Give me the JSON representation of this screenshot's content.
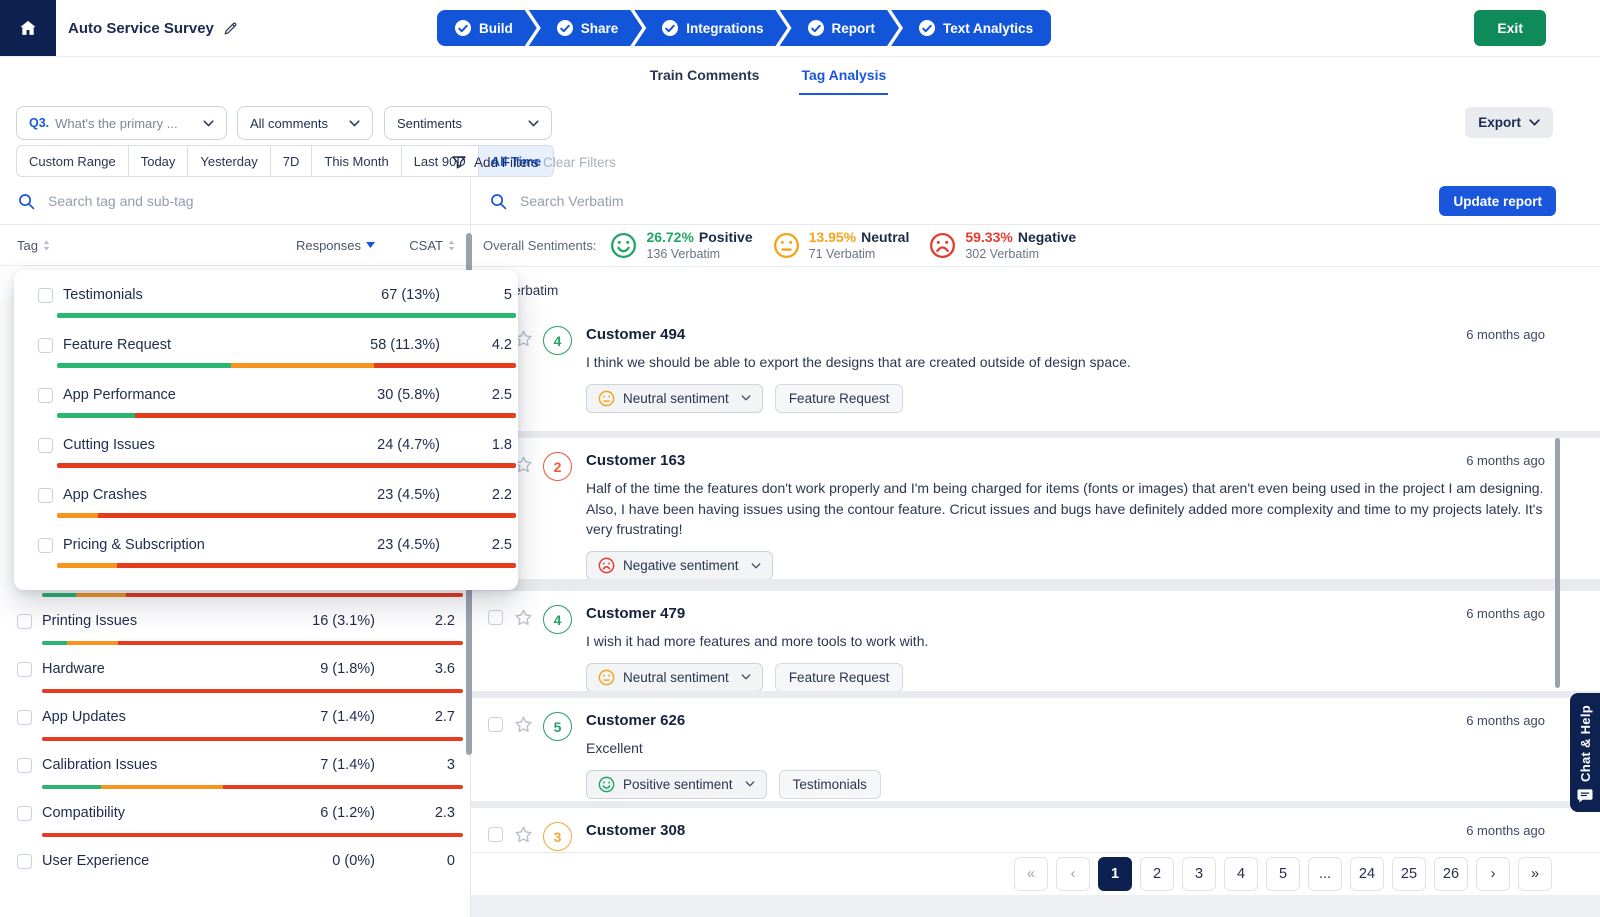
{
  "colors": {
    "accent_blue": "#1a56db",
    "step_blue": "#1355d8",
    "navy": "#0d2150",
    "exit_green": "#0f8a5b",
    "positive": "#22a565",
    "neutral": "#f5a31a",
    "negative": "#e63a2e",
    "bar_green": "#2bb673",
    "bar_orange": "#f7941e",
    "bar_red": "#e53c1d",
    "rating_green": "#27a163",
    "rating_red": "#f4573a",
    "rating_amber": "#f3a93c"
  },
  "header": {
    "title": "Auto Service Survey",
    "steps": [
      "Build",
      "Share",
      "Integrations",
      "Report",
      "Text Analytics"
    ],
    "exit_label": "Exit"
  },
  "tabs": [
    {
      "label": "Train Comments",
      "active": false
    },
    {
      "label": "Tag Analysis",
      "active": true
    }
  ],
  "filters": {
    "question_prefix": "Q3.",
    "question_label": "What's the primary ...",
    "comments_label": "All comments",
    "sentiments_label": "Sentiments",
    "export_label": "Export",
    "date_ranges": [
      "Custom Range",
      "Today",
      "Yesterday",
      "7D",
      "This Month",
      "Last 90D",
      "All Time"
    ],
    "active_range": "All Time",
    "add_filters_label": "Add Filters",
    "clear_filters_label": "Clear Filters"
  },
  "tag_panel": {
    "search_placeholder": "Search tag and sub-tag",
    "columns": {
      "tag": "Tag",
      "responses": "Responses",
      "csat": "CSAT"
    },
    "card_rows": [
      {
        "name": "Testimonials",
        "responses": "67 (13%)",
        "csat": "5",
        "bar": [
          {
            "color": "green",
            "pct": 100
          }
        ]
      },
      {
        "name": "Feature Request",
        "responses": "58 (11.3%)",
        "csat": "4.2",
        "bar": [
          {
            "color": "green",
            "pct": 38
          },
          {
            "color": "orange",
            "pct": 31
          },
          {
            "color": "red",
            "pct": 31
          }
        ]
      },
      {
        "name": "App Performance",
        "responses": "30 (5.8%)",
        "csat": "2.5",
        "bar": [
          {
            "color": "green",
            "pct": 17
          },
          {
            "color": "red",
            "pct": 83
          }
        ]
      },
      {
        "name": "Cutting Issues",
        "responses": "24 (4.7%)",
        "csat": "1.8",
        "bar": [
          {
            "color": "red",
            "pct": 100
          }
        ]
      },
      {
        "name": "App Crashes",
        "responses": "23 (4.5%)",
        "csat": "2.2",
        "bar": [
          {
            "color": "orange",
            "pct": 9
          },
          {
            "color": "red",
            "pct": 91
          }
        ]
      },
      {
        "name": "Pricing & Subscription",
        "responses": "23 (4.5%)",
        "csat": "2.5",
        "bar": [
          {
            "color": "orange",
            "pct": 13
          },
          {
            "color": "red",
            "pct": 87
          }
        ]
      }
    ],
    "list_rows": [
      {
        "name": "",
        "responses": "",
        "csat": "",
        "hidden": true,
        "bar": [
          {
            "color": "green",
            "pct": 8
          },
          {
            "color": "orange",
            "pct": 12
          },
          {
            "color": "red",
            "pct": 80
          }
        ]
      },
      {
        "name": "Printing Issues",
        "responses": "16 (3.1%)",
        "csat": "2.2",
        "bar": [
          {
            "color": "green",
            "pct": 6
          },
          {
            "color": "orange",
            "pct": 12
          },
          {
            "color": "red",
            "pct": 82
          }
        ]
      },
      {
        "name": "Hardware",
        "responses": "9 (1.8%)",
        "csat": "3.6",
        "bar": [
          {
            "color": "red",
            "pct": 100
          }
        ]
      },
      {
        "name": "App Updates",
        "responses": "7 (1.4%)",
        "csat": "2.7",
        "bar": [
          {
            "color": "red",
            "pct": 100
          }
        ]
      },
      {
        "name": "Calibration Issues",
        "responses": "7 (1.4%)",
        "csat": "3",
        "bar": [
          {
            "color": "green",
            "pct": 14
          },
          {
            "color": "orange",
            "pct": 29
          },
          {
            "color": "red",
            "pct": 57
          }
        ]
      },
      {
        "name": "Compatibility",
        "responses": "6 (1.2%)",
        "csat": "2.3",
        "bar": [
          {
            "color": "red",
            "pct": 100
          }
        ]
      },
      {
        "name": "User Experience",
        "responses": "0 (0%)",
        "csat": "0",
        "bar": []
      }
    ]
  },
  "verbatim_panel": {
    "search_placeholder": "Search Verbatim",
    "update_label": "Update report",
    "overall_label": "Overall Sentiments:",
    "overall": [
      {
        "pct": "26.72%",
        "label": "Positive",
        "count": "136 Verbatim",
        "type": "positive"
      },
      {
        "pct": "13.95%",
        "label": "Neutral",
        "count": "71 Verbatim",
        "type": "neutral"
      },
      {
        "pct": "59.33%",
        "label": "Negative",
        "count": "302 Verbatim",
        "type": "negative"
      }
    ],
    "section_title": "Verbatim",
    "entries": [
      {
        "name": "Customer 494",
        "rating": "4",
        "rating_color": "rating_green",
        "time": "6 months ago",
        "text": "I think we should be able to export the designs that are created outside of design space.",
        "sentiment": {
          "label": "Neutral sentiment",
          "type": "neutral"
        },
        "tags": [
          "Feature Request"
        ]
      },
      {
        "name": "Customer 163",
        "rating": "2",
        "rating_color": "rating_red",
        "time": "6 months ago",
        "text": "Half of the time the features don't work properly and I'm being charged for items (fonts or images) that aren't even being used in the project I am designing. Also, I have been having issues using the contour feature. Cricut issues and bugs have definitely added more complexity and time to my projects lately. It's very frustrating!",
        "sentiment": {
          "label": "Negative sentiment",
          "type": "negative"
        },
        "tags": []
      },
      {
        "name": "Customer 479",
        "rating": "4",
        "rating_color": "rating_green",
        "time": "6 months ago",
        "text": "I wish it had more features and more tools to work with.",
        "sentiment": {
          "label": "Neutral sentiment",
          "type": "neutral"
        },
        "tags": [
          "Feature Request"
        ]
      },
      {
        "name": "Customer 626",
        "rating": "5",
        "rating_color": "rating_green",
        "time": "6 months ago",
        "text": "Excellent",
        "sentiment": {
          "label": "Positive sentiment",
          "type": "positive"
        },
        "tags": [
          "Testimonials"
        ]
      },
      {
        "name": "Customer 308",
        "rating": "3",
        "rating_color": "rating_amber",
        "time": "6 months ago",
        "text": "",
        "sentiment": null,
        "tags": []
      }
    ],
    "pagination": {
      "first": "«",
      "prev": "‹",
      "pages": [
        "1",
        "2",
        "3",
        "4",
        "5",
        "...",
        "24",
        "25",
        "26"
      ],
      "active": "1",
      "next": "›",
      "last": "»"
    }
  },
  "chat_tab": {
    "label": "Chat & Help"
  }
}
